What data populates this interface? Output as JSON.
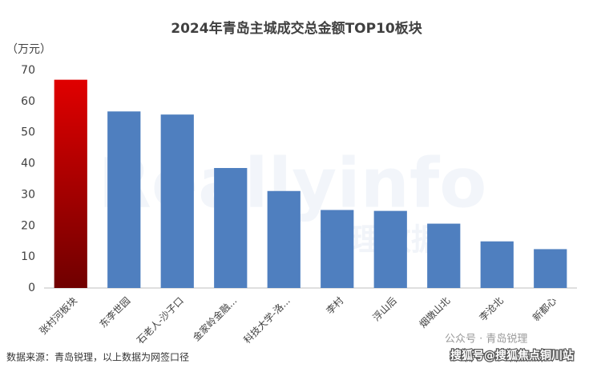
{
  "chart_data": {
    "type": "bar",
    "title": "2024年青岛主城成交总金额TOP10板块",
    "y_label": "（万元）",
    "categories": [
      "张村河板块",
      "东李世园",
      "石老人-沙子口",
      "金家岭金融...",
      "科技大学-洛...",
      "李村",
      "浮山后",
      "烟墩山北",
      "李沧北",
      "新都心"
    ],
    "values": [
      67,
      56.8,
      55.8,
      38.6,
      31.2,
      25.1,
      24.8,
      20.7,
      15,
      12.5
    ],
    "colors": [
      "#e00000",
      "#4f7fbf",
      "#4f7fbf",
      "#4f7fbf",
      "#4f7fbf",
      "#4f7fbf",
      "#4f7fbf",
      "#4f7fbf",
      "#4f7fbf",
      "#4f7fbf"
    ],
    "ylim": [
      0,
      70
    ],
    "yticks": [
      0,
      10,
      20,
      30,
      40,
      50,
      60,
      70
    ],
    "grid": false,
    "source": "数据来源：青岛锐理，以上数据为网签口径",
    "watermark": "Reallyinfo",
    "watermark_cn": "锐理数据",
    "wechat": "公众号 · 青岛锐理",
    "sohu": "搜狐号@搜狐焦点铜川站"
  }
}
